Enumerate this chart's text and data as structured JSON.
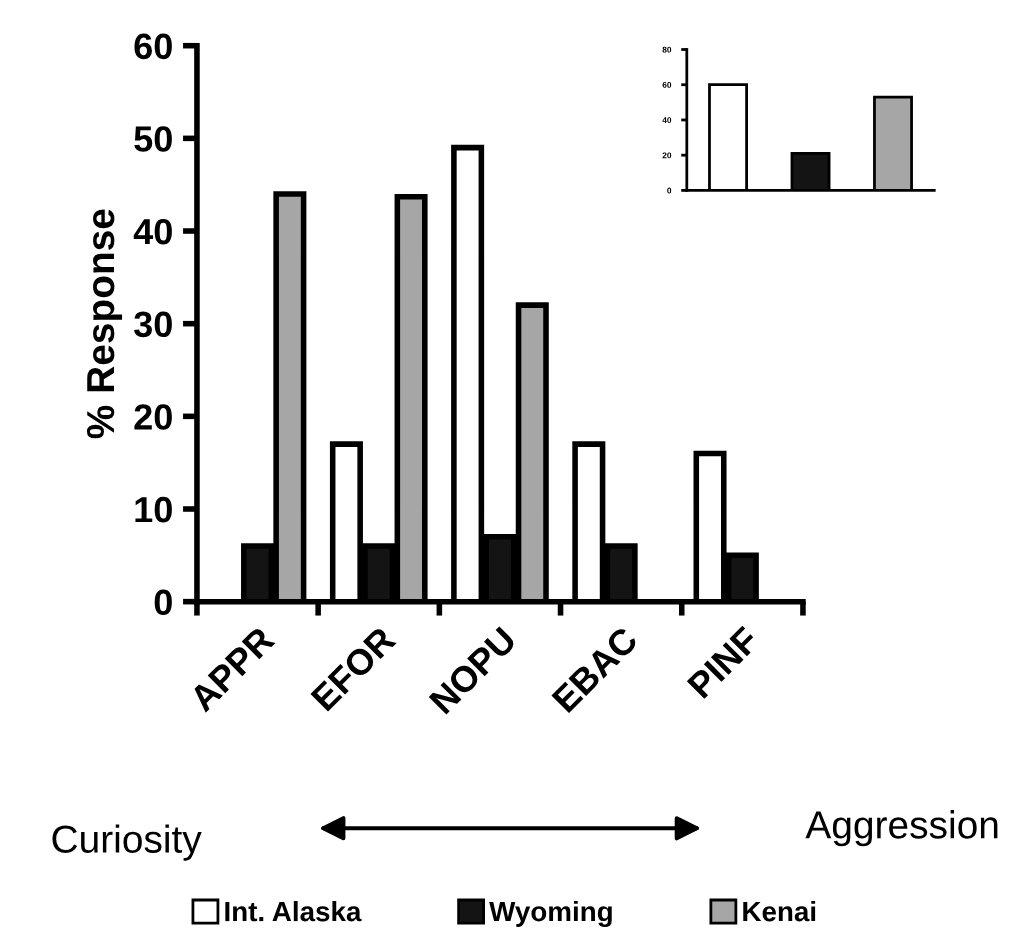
{
  "chart_data": [
    {
      "type": "bar",
      "ylabel": "% Response",
      "categories": [
        "APPR",
        "EFOR",
        "NOPU",
        "EBAC",
        "PINF"
      ],
      "series": [
        {
          "name": "Int. Alaska",
          "color": "#ffffff",
          "values": [
            0,
            17,
            49,
            17,
            16
          ]
        },
        {
          "name": "Wyoming",
          "color": "#141414",
          "values": [
            6,
            6,
            7,
            6,
            5
          ]
        },
        {
          "name": "Kenai",
          "color": "#a6a6a6",
          "values": [
            44,
            43.7,
            32,
            0,
            0
          ]
        }
      ],
      "ylim": [
        0,
        60
      ],
      "yticks": [
        0,
        10,
        20,
        30,
        40,
        50,
        60
      ],
      "grid": false,
      "legend": "bottom",
      "annotations": [
        "Curiosity",
        "Aggression"
      ]
    },
    {
      "type": "bar",
      "categories": [
        null,
        null,
        null
      ],
      "values": [
        60,
        21,
        53
      ],
      "colors": [
        "#ffffff",
        "#141414",
        "#a6a6a6"
      ],
      "ylim": [
        0,
        80
      ],
      "yticks": [
        0,
        20,
        40,
        60,
        80
      ],
      "grid": false,
      "legend": false
    }
  ]
}
